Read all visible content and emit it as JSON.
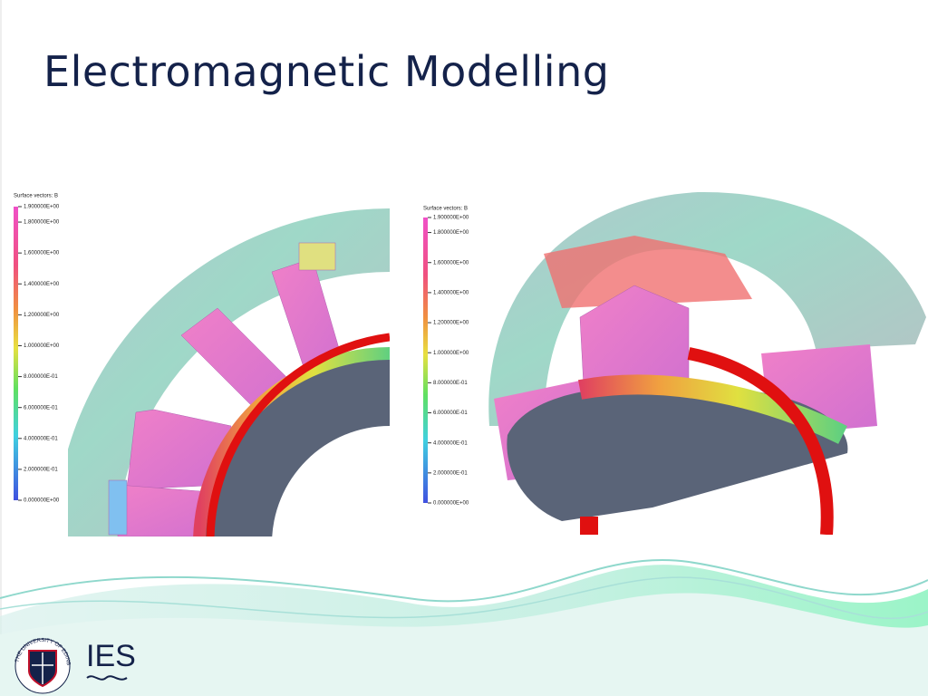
{
  "title": "Electromagnetic Modelling",
  "figures": [
    {
      "legend_title": "Surface vectors: B",
      "legend_ticks": [
        "1.900000E+00",
        "1.800000E+00",
        "1.600000E+00",
        "1.400000E+00",
        "1.200000E+00",
        "1.000000E+00",
        "8.000000E-01",
        "6.000000E-01",
        "4.000000E-01",
        "2.000000E-01",
        "0.000000E+00"
      ]
    },
    {
      "legend_title": "Surface vectors: B",
      "legend_ticks": [
        "1.900000E+00",
        "1.800000E+00",
        "1.600000E+00",
        "1.400000E+00",
        "1.200000E+00",
        "1.000000E+00",
        "8.000000E-01",
        "6.000000E-01",
        "4.000000E-01",
        "2.000000E-01",
        "0.000000E+00"
      ]
    }
  ],
  "logo": {
    "text": "IES",
    "university": "THE UNIVERSITY OF EDINBURGH"
  }
}
